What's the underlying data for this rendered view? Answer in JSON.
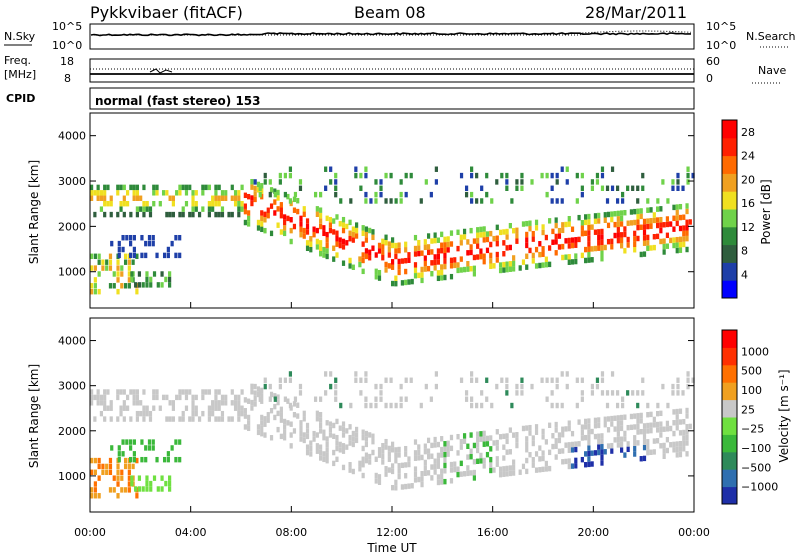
{
  "header": {
    "station": "Pykkvibaer (fitACF)",
    "beam": "Beam 08",
    "date": "28/Mar/2011"
  },
  "strips": {
    "nsky": {
      "label": "N.Sky",
      "ticks_left": [
        "10^5",
        "10^0"
      ],
      "ticks_right": [
        "10^5",
        "10^0"
      ],
      "right_label": "N.Search"
    },
    "freq": {
      "label_line1": "Freq.",
      "label_line2": "[MHz]",
      "ticks_left": [
        "18",
        "8"
      ],
      "ticks_right": [
        "60",
        "0"
      ],
      "right_label": "Nave"
    },
    "cpid": {
      "label": "CPID",
      "value": "normal (fast stereo) 153"
    }
  },
  "chart_data": [
    {
      "type": "heatmap",
      "ylabel": "Slant Range [km]",
      "y_ticks": [
        "4000",
        "3000",
        "2000",
        "1000"
      ],
      "ylim": [
        200,
        4500
      ],
      "xlim": [
        "00:00",
        "24:00"
      ],
      "colorbar": {
        "label": "Power [dB]",
        "ticks": [
          "28",
          "24",
          "20",
          "16",
          "12",
          "8",
          "4"
        ],
        "range": [
          0,
          30
        ],
        "colors": [
          "#0000ff",
          "#1e3fa8",
          "#2f5e3e",
          "#2e8a3a",
          "#6fd24a",
          "#f0e020",
          "#f0a020",
          "#ff6a00",
          "#ff2000",
          "#ff0000"
        ]
      }
    },
    {
      "type": "heatmap",
      "ylabel": "Slant Range [km]",
      "y_ticks": [
        "4000",
        "3000",
        "2000",
        "1000"
      ],
      "ylim": [
        200,
        4500
      ],
      "xlim": [
        "00:00",
        "24:00"
      ],
      "x_ticks": [
        "00:00",
        "04:00",
        "08:00",
        "12:00",
        "16:00",
        "20:00",
        "00:00"
      ],
      "xlabel": "Time UT",
      "colorbar": {
        "label": "Velocity [m s⁻¹]",
        "ticks": [
          "1000",
          "500",
          "100",
          "25",
          "−25",
          "−100",
          "−500",
          "−1000"
        ],
        "colors": [
          "#1e2fa8",
          "#2f6fb0",
          "#2e8a5a",
          "#3ab83a",
          "#6fe040",
          "#c8c8c8",
          "#f0a020",
          "#ff7000",
          "#ff3000",
          "#ff0000"
        ]
      }
    }
  ]
}
